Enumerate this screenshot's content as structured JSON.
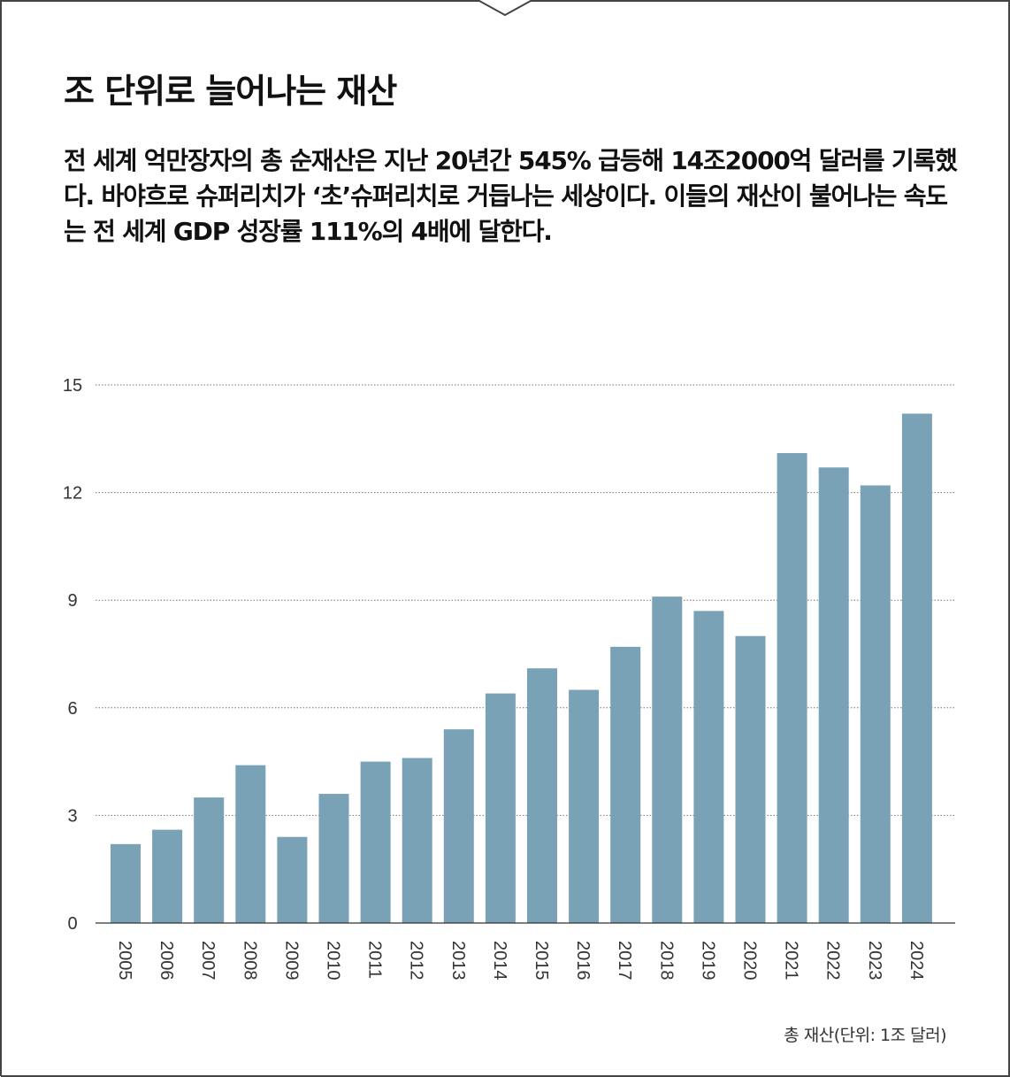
{
  "title": "조 단위로 늘어나는 재산",
  "description": "전 세계 억만장자의 총 순재산은 지난 20년간 545% 급등해 14조2000억 달러를 기록했다. 바야흐로 슈퍼리치가 ‘초’슈퍼리치로 거듭나는 세상이다. 이들의 재산이 불어나는 속도는 전 세계 GDP 성장률 111%의 4배에 달한다.",
  "chart_data": {
    "type": "bar",
    "title": "",
    "xlabel": "",
    "ylabel": "",
    "categories": [
      "2005",
      "2006",
      "2007",
      "2008",
      "2009",
      "2010",
      "2011",
      "2012",
      "2013",
      "2014",
      "2015",
      "2016",
      "2017",
      "2018",
      "2019",
      "2020",
      "2021",
      "2022",
      "2023",
      "2024"
    ],
    "values": [
      2.2,
      2.6,
      3.5,
      4.4,
      2.4,
      3.6,
      4.5,
      4.6,
      5.4,
      6.4,
      7.1,
      6.5,
      7.7,
      9.1,
      8.7,
      8.0,
      13.1,
      12.7,
      12.2,
      14.2
    ],
    "ylim": [
      0,
      15
    ],
    "yticks": [
      0,
      3,
      6,
      9,
      12,
      15
    ],
    "grid": "horizontal-dotted",
    "bar_color": "#7aa2b6",
    "note": "총 재산(단위: 1조 달러)"
  }
}
